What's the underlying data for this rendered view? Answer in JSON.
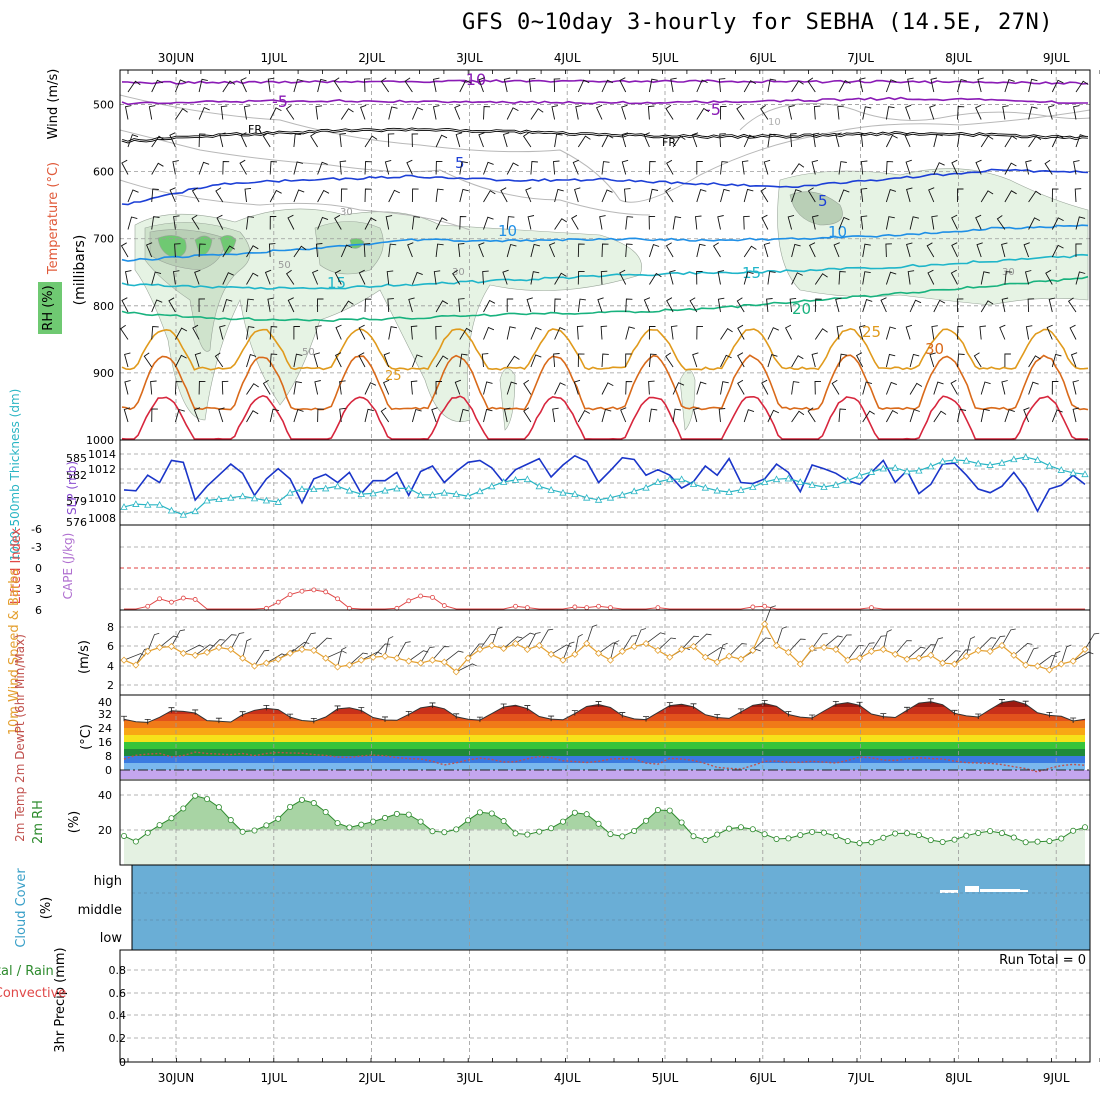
{
  "title": "GFS 0~10day 3-hourly for SEBHA (14.5E, 27N)",
  "dates": [
    "30JUN",
    "1JUL",
    "2JUL",
    "3JUL",
    "4JUL",
    "5JUL",
    "6JUL",
    "7JUL",
    "8JUL",
    "9JUL"
  ],
  "colors": {
    "temp_purple": "#8a1bb5",
    "temp_blue": "#1c3fd6",
    "temp_lightblue": "#1f8fe6",
    "temp_cyan": "#1fb5c9",
    "temp_green": "#18b27e",
    "temp_orange": "#e09a1c",
    "temp_red": "#d7263d",
    "rh_fill": "#dff0df",
    "cloud": "#6aaed6",
    "slp": "#1a35c9",
    "thick": "#2ab5c4",
    "wind10": "#e4a030"
  },
  "chart_data": [
    {
      "type": "line",
      "panel": "upper-air",
      "ylabel_wind": "Wind (m/s)",
      "ylabel_temp": "Temperature (°C)",
      "ylabel_rh": "RH (%)",
      "ylabel_units": "(millibars)",
      "ylim": [
        1000,
        450
      ],
      "yticks": [
        "500",
        "600",
        "700",
        "800",
        "900",
        "1000"
      ],
      "contour_labels": [
        "-10",
        "-5",
        "-5",
        "FR",
        "FR",
        "5",
        "5",
        "10",
        "10",
        "15",
        "15",
        "20",
        "25",
        "30",
        "25",
        "30",
        "30",
        "50",
        "50",
        "10",
        "30"
      ],
      "isotherms": [
        {
          "name": "-10",
          "values": [
            468,
            467,
            466,
            466,
            465,
            465,
            465,
            466,
            466,
            467,
            468
          ]
        },
        {
          "name": "-5",
          "values": [
            498,
            496,
            494,
            496,
            497,
            497,
            496,
            494,
            491,
            493,
            498
          ]
        },
        {
          "name": "FR",
          "values": [
            555,
            546,
            540,
            537,
            540,
            545,
            548,
            547,
            543,
            545,
            550
          ]
        },
        {
          "name": "5",
          "values": [
            650,
            618,
            612,
            607,
            613,
            612,
            618,
            622,
            610,
            598,
            600
          ]
        },
        {
          "name": "10",
          "values": [
            733,
            724,
            714,
            702,
            703,
            700,
            702,
            700,
            695,
            685,
            680
          ]
        },
        {
          "name": "15",
          "values": [
            768,
            772,
            775,
            768,
            762,
            755,
            751,
            748,
            742,
            733,
            725
          ]
        },
        {
          "name": "20",
          "values": [
            810,
            818,
            822,
            818,
            813,
            810,
            805,
            794,
            782,
            770,
            758
          ]
        }
      ]
    },
    {
      "type": "line",
      "panel": "slp-thickness",
      "ylabel_left": "1000-500mb Thickness (dm)",
      "ylabel_right": "SLP (mb)",
      "yticks_left": [
        "585",
        "582",
        "579",
        "576"
      ],
      "yticks_right": [
        "1014",
        "1012",
        "1010",
        "1008"
      ],
      "series": [
        {
          "name": "SLP (mb)",
          "values": [
            1010.4,
            1010.3,
            1012.0,
            1011.2,
            1013.6,
            1013.4,
            1009.3,
            1010.8,
            1012.0,
            1013.2,
            1012.2,
            1009.8,
            1011.6,
            1012.7,
            1011.6,
            1009.0,
            1011.6,
            1012.1,
            1011.2,
            1012.3,
            1010.0,
            1011.4,
            1011.4,
            1012.3,
            1009.8,
            1012.4,
            1013.0,
            1011.2,
            1012.4,
            1013.4,
            1013.6,
            1012.8,
            1011.2,
            1012.6,
            1013.2,
            1013.8,
            1011.8,
            1013.1,
            1014.1,
            1013.5,
            1011.2,
            1012.5,
            1013.9,
            1013.7,
            1012.0,
            1012.6,
            1012.0,
            1010.6,
            1011.3,
            1013.0,
            1012.0,
            1013.8,
            1011.2,
            1011.1,
            1011.6,
            1013.2,
            1012.3,
            1010.2,
            1013.1,
            1012.7,
            1012.2,
            1011.4,
            1011.0,
            1012.3,
            1013.6,
            1011.2,
            1012.5,
            1010.0,
            1011.0,
            1013.2,
            1013.3,
            1012.0,
            1010.5,
            1010.1,
            1010.8,
            1012.3,
            1010.6,
            1008.1,
            1010.5,
            1010.9,
            1012.0,
            1011.0
          ]
        },
        {
          "name": "Thickness (dm)",
          "values": [
            577.7,
            578.1,
            578.0,
            578.0,
            577.2,
            576.6,
            577.1,
            578.6,
            578.8,
            579.0,
            579.2,
            578.9,
            578.6,
            578.4,
            579.7,
            580.2,
            580.2,
            580.3,
            580.6,
            580.0,
            579.5,
            579.6,
            580.0,
            580.3,
            580.3,
            579.4,
            579.4,
            579.7,
            579.5,
            579.2,
            579.9,
            580.6,
            581.2,
            581.5,
            581.6,
            580.6,
            580.1,
            579.7,
            579.5,
            579.0,
            578.7,
            579.0,
            579.4,
            579.9,
            580.4,
            581.2,
            581.6,
            581.6,
            580.9,
            580.4,
            580.0,
            579.8,
            580.1,
            580.5,
            581.2,
            581.6,
            581.7,
            581.2,
            580.8,
            580.5,
            580.8,
            581.4,
            582.1,
            582.6,
            583.1,
            583.2,
            582.7,
            582.8,
            583.4,
            584.1,
            584.3,
            584.2,
            583.8,
            583.6,
            583.9,
            584.4,
            584.7,
            584.3,
            583.5,
            582.9,
            582.5,
            582.3
          ]
        }
      ]
    },
    {
      "type": "line",
      "panel": "stability",
      "ylabel_left": "Lifted Index",
      "ylabel_right": "CAPE (J/kg)",
      "yticks": [
        "-6",
        "-3",
        "0",
        "3",
        "6"
      ],
      "series": [
        {
          "name": "Lifted Index",
          "values": [
            6.0,
            6.0,
            5.6,
            4.5,
            5.0,
            4.4,
            4.6,
            6.0,
            6.0,
            6.0,
            6.0,
            6.0,
            5.9,
            5.0,
            3.9,
            3.4,
            3.2,
            3.5,
            4.5,
            5.9,
            6.0,
            6.0,
            6.0,
            5.9,
            4.8,
            4.1,
            4.3,
            5.5,
            6.0,
            6.0,
            6.0,
            6.0,
            6.0,
            5.6,
            5.8,
            6.0,
            6.0,
            6.0,
            5.7,
            5.8,
            5.6,
            5.8,
            6.0,
            6.0,
            6.0,
            5.8,
            6.0,
            6.0,
            6.0,
            6.0,
            6.0,
            6.0,
            6.0,
            5.7,
            5.6,
            6.0,
            6.0,
            6.0,
            6.0,
            6.0,
            6.0,
            6.0,
            6.0,
            5.8,
            6.0,
            6.0,
            6.0,
            6.0,
            6.0,
            6.0,
            6.0,
            6.0,
            6.0,
            6.0,
            6.0,
            6.0,
            6.0,
            6.0,
            6.0,
            6.0,
            6.0,
            6.0
          ]
        }
      ]
    },
    {
      "type": "line",
      "panel": "wind10",
      "ylabel": "10m Wind Speed & Barbs",
      "yunits": "(m/s)",
      "yticks": [
        "2",
        "4",
        "6",
        "8"
      ],
      "series": [
        {
          "name": "10m wind speed",
          "values": [
            4.6,
            4.1,
            5.5,
            5.9,
            6.0,
            5.3,
            5.1,
            5.4,
            5.9,
            5.7,
            4.8,
            4.0,
            4.3,
            4.7,
            5.3,
            5.7,
            5.6,
            4.8,
            3.9,
            4.1,
            4.6,
            4.9,
            5.0,
            4.8,
            4.5,
            4.3,
            4.6,
            4.4,
            3.4,
            4.8,
            5.7,
            6.1,
            5.8,
            6.3,
            5.7,
            6.1,
            5.2,
            4.6,
            5.2,
            6.3,
            5.3,
            4.6,
            5.5,
            6.0,
            6.3,
            5.6,
            4.9,
            5.7,
            6.0,
            4.9,
            4.4,
            5.0,
            4.7,
            5.6,
            8.3,
            6.1,
            5.4,
            4.2,
            5.8,
            5.9,
            5.7,
            4.6,
            4.8,
            5.5,
            5.7,
            5.2,
            4.7,
            4.8,
            5.1,
            4.3,
            4.2,
            5.0,
            5.6,
            5.5,
            6.1,
            5.1,
            4.1,
            4.0,
            3.6,
            4.2,
            4.5,
            5.7
          ]
        }
      ]
    },
    {
      "type": "area",
      "panel": "temp2m",
      "ylabel": "2m Temp 2m DewPt (6hr Min/Max)",
      "yunits": "(°C)",
      "yticks": [
        "0",
        "8",
        "16",
        "24",
        "32",
        "40"
      ],
      "series": [
        {
          "name": "2m Temp",
          "values": [
            29.0,
            27.6,
            27.2,
            30.1,
            33.9,
            33.5,
            32.6,
            28.2,
            27.9,
            27.4,
            31.6,
            34.1,
            35.2,
            34.5,
            30.2,
            28.3,
            27.8,
            30.3,
            34.9,
            35.6,
            34.0,
            30.0,
            28.6,
            28.4,
            31.8,
            35.5,
            36.6,
            35.0,
            30.4,
            29.0,
            28.5,
            32.2,
            36.0,
            37.0,
            35.1,
            30.6,
            29.1,
            28.7,
            32.2,
            36.3,
            37.4,
            35.7,
            31.1,
            29.2,
            28.8,
            32.8,
            36.8,
            37.6,
            36.1,
            31.6,
            30.0,
            29.5,
            33.2,
            37.0,
            38.0,
            36.4,
            31.7,
            30.2,
            29.7,
            33.7,
            37.5,
            38.5,
            37.0,
            32.0,
            30.5,
            30.0,
            34.1,
            38.2,
            39.0,
            37.3,
            32.4,
            30.9,
            30.3,
            34.6,
            38.6,
            39.6,
            37.6,
            32.7,
            31.2,
            30.7,
            28.0,
            29.0
          ]
        },
        {
          "name": "2m DewPt",
          "values": [
            6.2,
            8.4,
            9.1,
            9.5,
            7.5,
            8.3,
            10.2,
            9.4,
            9.1,
            8.8,
            9.4,
            8.2,
            9.4,
            10.0,
            9.7,
            9.6,
            8.8,
            8.3,
            7.4,
            7.2,
            8.0,
            8.6,
            8.1,
            7.1,
            6.5,
            6.3,
            5.0,
            2.9,
            4.1,
            5.7,
            6.8,
            6.0,
            4.6,
            4.7,
            6.4,
            7.8,
            7.0,
            5.3,
            4.8,
            4.3,
            5.0,
            6.2,
            6.6,
            6.2,
            4.0,
            3.3,
            6.7,
            6.3,
            5.4,
            3.8,
            1.5,
            0.9,
            0.5,
            2.6,
            4.9,
            5.1,
            4.4,
            4.4,
            5.0,
            4.5,
            4.0,
            5.4,
            7.4,
            7.0,
            5.7,
            5.4,
            6.4,
            7.0,
            6.6,
            6.3,
            5.1,
            4.2,
            4.0,
            3.9,
            3.1,
            1.9,
            0.8,
            -1.0,
            1.0,
            2.5,
            3.2,
            2.7
          ]
        }
      ]
    },
    {
      "type": "area",
      "panel": "rh2m",
      "ylabel": "2m RH",
      "yunits": "(%)",
      "yticks": [
        "20",
        "40"
      ],
      "series": [
        {
          "name": "2m RH",
          "values": [
            15.4,
            11.5,
            17.6,
            23.0,
            27.8,
            34.6,
            43.5,
            41.2,
            35.5,
            26.5,
            18.3,
            19.2,
            22.8,
            27.4,
            35.7,
            40.6,
            38.4,
            32.1,
            24.4,
            21.3,
            23.3,
            25.4,
            28.0,
            30.8,
            30.3,
            25.4,
            18.7,
            18.0,
            20.0,
            26.4,
            31.9,
            31.1,
            25.8,
            17.2,
            16.4,
            18.4,
            20.8,
            25.4,
            31.6,
            30.6,
            23.9,
            16.7,
            15.1,
            18.9,
            26.0,
            33.5,
            33.1,
            24.8,
            15.2,
            12.6,
            16.4,
            20.5,
            21.5,
            20.1,
            16.6,
            13.3,
            13.7,
            16.0,
            18.2,
            17.7,
            15.4,
            11.8,
            10.4,
            11.0,
            14.1,
            17.1,
            17.3,
            16.0,
            12.5,
            11.2,
            12.8,
            15.6,
            17.5,
            18.8,
            17.4,
            14.3,
            11.0,
            11.4,
            11.8,
            13.6,
            19.0,
            21.5
          ]
        }
      ]
    },
    {
      "type": "heatmap",
      "panel": "cloud",
      "ylabel": "Cloud Cover",
      "yunits": "(%)",
      "levels": [
        "high",
        "middle",
        "low"
      ]
    },
    {
      "type": "bar",
      "panel": "precip",
      "ylabel_left": "Total / Rain",
      "ylabel_left2": "Convective",
      "ylabel": "3hr Precip (mm)",
      "yticks": [
        "0",
        "0.2",
        "0.4",
        "0.6",
        "0.8"
      ],
      "run_total": "Run Total = 0",
      "series": [
        {
          "name": "3hr Precip",
          "values": [
            0,
            0,
            0,
            0,
            0,
            0,
            0,
            0,
            0,
            0
          ]
        }
      ]
    }
  ]
}
